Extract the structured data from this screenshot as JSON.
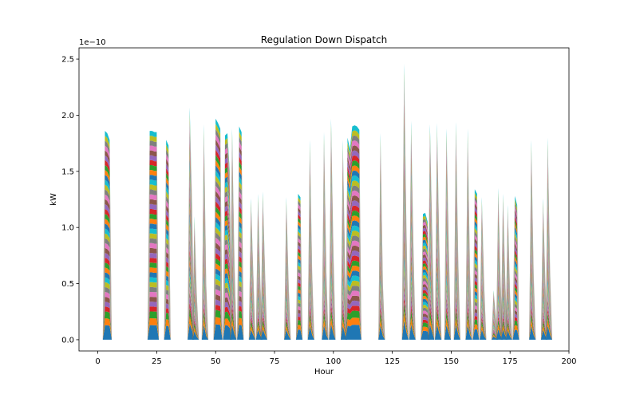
{
  "chart_data": {
    "type": "area",
    "stacked": true,
    "title": "Regulation Down Dispatch",
    "xlabel": "Hour",
    "ylabel": "kW",
    "offset_text": "1e−10",
    "xlim": [
      -8,
      200
    ],
    "ylim": [
      -0.1,
      2.6
    ],
    "y_unit_scale": "1e-10",
    "xticks": [
      0,
      25,
      50,
      75,
      100,
      125,
      150,
      175,
      200
    ],
    "xtick_labels": [
      "0",
      "25",
      "50",
      "75",
      "100",
      "125",
      "150",
      "175",
      "200"
    ],
    "yticks": [
      0.0,
      0.5,
      1.0,
      1.5,
      2.0,
      2.5
    ],
    "ytick_labels": [
      "0.0",
      "0.5",
      "1.0",
      "1.5",
      "2.0",
      "2.5"
    ],
    "grid": false,
    "legend": "none",
    "series_count": 40,
    "palette": [
      "#1f77b4",
      "#ff7f0e",
      "#2ca02c",
      "#d62728",
      "#9467bd",
      "#8c564b",
      "#e377c2",
      "#7f7f7f",
      "#bcbd22",
      "#17becf"
    ],
    "stack_totals": [
      {
        "x": [
          3,
          4,
          5
        ],
        "y": [
          1.86,
          1.84,
          1.78
        ]
      },
      {
        "x": [
          22,
          23,
          24,
          25
        ],
        "y": [
          1.86,
          1.86,
          1.85,
          1.85
        ]
      },
      {
        "x": [
          29,
          30
        ],
        "y": [
          1.78,
          1.73
        ]
      },
      {
        "x": [
          39,
          40
        ],
        "y": [
          2.07,
          1.2
        ]
      },
      {
        "x": [
          41,
          42
        ],
        "y": [
          1.1,
          0.4
        ]
      },
      {
        "x": [
          45,
          46
        ],
        "y": [
          1.92,
          0.5
        ]
      },
      {
        "x": [
          50,
          51,
          52
        ],
        "y": [
          1.97,
          1.93,
          1.88
        ]
      },
      {
        "x": [
          54,
          55,
          56
        ],
        "y": [
          1.82,
          1.84,
          1.5
        ]
      },
      {
        "x": [
          57,
          58
        ],
        "y": [
          1.88,
          0.7
        ]
      },
      {
        "x": [
          60,
          61
        ],
        "y": [
          1.9,
          1.85
        ]
      },
      {
        "x": [
          65,
          66
        ],
        "y": [
          1.26,
          0.6
        ]
      },
      {
        "x": [
          68,
          69
        ],
        "y": [
          1.3,
          0.5
        ]
      },
      {
        "x": [
          70,
          71
        ],
        "y": [
          1.32,
          0.6
        ]
      },
      {
        "x": [
          80,
          81
        ],
        "y": [
          1.27,
          0.5
        ]
      },
      {
        "x": [
          85,
          86
        ],
        "y": [
          1.3,
          1.27
        ]
      },
      {
        "x": [
          90,
          91
        ],
        "y": [
          1.78,
          0.6
        ]
      },
      {
        "x": [
          96,
          97
        ],
        "y": [
          1.85,
          0.6
        ]
      },
      {
        "x": [
          99,
          100
        ],
        "y": [
          1.97,
          0.8
        ]
      },
      {
        "x": [
          104,
          105
        ],
        "y": [
          1.78,
          0.6
        ]
      },
      {
        "x": [
          106,
          107,
          108,
          109,
          110,
          111
        ],
        "y": [
          1.8,
          1.7,
          1.9,
          1.91,
          1.9,
          1.87
        ]
      },
      {
        "x": [
          120,
          121
        ],
        "y": [
          1.84,
          0.5
        ]
      },
      {
        "x": [
          130,
          131
        ],
        "y": [
          2.46,
          1.0
        ]
      },
      {
        "x": [
          133,
          134
        ],
        "y": [
          1.95,
          0.8
        ]
      },
      {
        "x": [
          138,
          139,
          140
        ],
        "y": [
          1.12,
          1.13,
          1.05
        ]
      },
      {
        "x": [
          141,
          142
        ],
        "y": [
          1.92,
          0.9
        ]
      },
      {
        "x": [
          144,
          145
        ],
        "y": [
          1.93,
          0.8
        ]
      },
      {
        "x": [
          148,
          149
        ],
        "y": [
          1.88,
          0.8
        ]
      },
      {
        "x": [
          152,
          153
        ],
        "y": [
          1.94,
          0.7
        ]
      },
      {
        "x": [
          157,
          158
        ],
        "y": [
          1.88,
          0.6
        ]
      },
      {
        "x": [
          160,
          161
        ],
        "y": [
          1.34,
          1.3
        ]
      },
      {
        "x": [
          163,
          164
        ],
        "y": [
          1.27,
          0.5
        ]
      },
      {
        "x": [
          168,
          169
        ],
        "y": [
          0.44,
          0.2
        ]
      },
      {
        "x": [
          170,
          171
        ],
        "y": [
          1.35,
          0.5
        ]
      },
      {
        "x": [
          172,
          173
        ],
        "y": [
          1.3,
          0.5
        ]
      },
      {
        "x": [
          174,
          175
        ],
        "y": [
          1.2,
          0.4
        ]
      },
      {
        "x": [
          177,
          178
        ],
        "y": [
          1.28,
          1.2
        ]
      },
      {
        "x": [
          184,
          185
        ],
        "y": [
          1.78,
          0.6
        ]
      },
      {
        "x": [
          189,
          190
        ],
        "y": [
          1.26,
          0.5
        ]
      },
      {
        "x": [
          191,
          192
        ],
        "y": [
          1.8,
          0.6
        ]
      }
    ]
  }
}
